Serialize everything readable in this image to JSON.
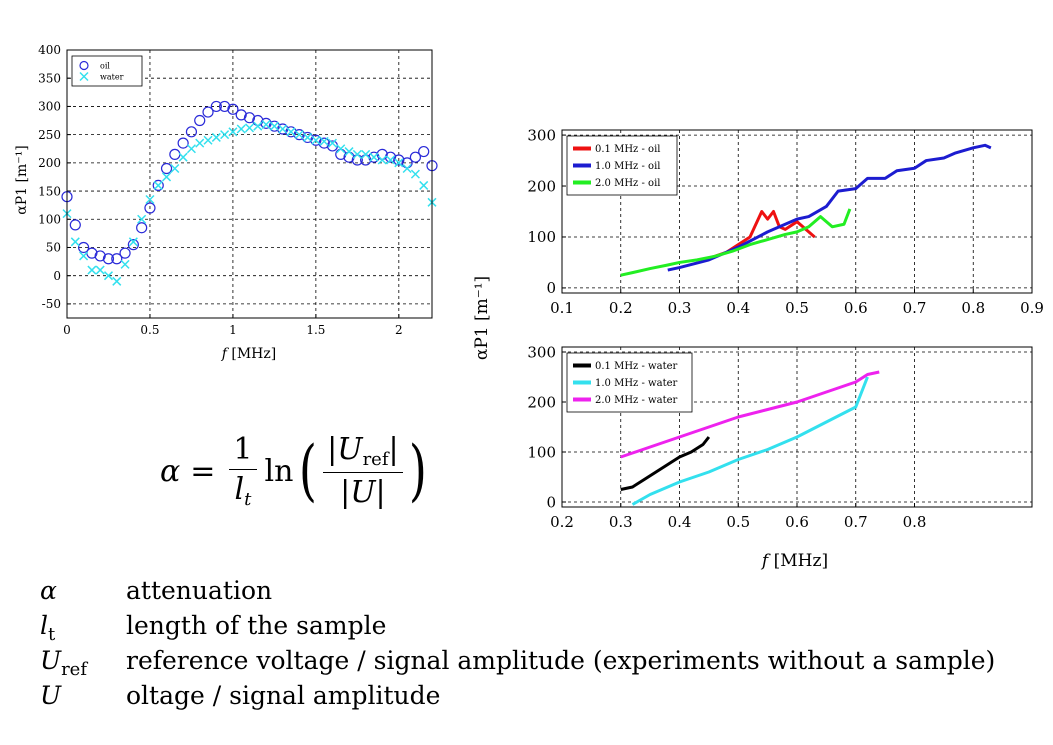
{
  "chart_data": [
    {
      "type": "scatter",
      "xlabel": "f [MHz]",
      "ylabel": "αP1 [m⁻¹]",
      "xlim": [
        0,
        2.2
      ],
      "ylim": [
        -75,
        400
      ],
      "xticks": [
        "0",
        "0.5",
        "1",
        "1.5",
        "2"
      ],
      "yticks": [
        "-50",
        "0",
        "50",
        "100",
        "150",
        "200",
        "250",
        "300",
        "350",
        "400"
      ],
      "grid": true,
      "legend_position": "top-left",
      "series": [
        {
          "name": "oil",
          "marker": "circle",
          "color": "#2a2ad8",
          "x": [
            0.0,
            0.05,
            0.1,
            0.15,
            0.2,
            0.25,
            0.3,
            0.35,
            0.4,
            0.45,
            0.5,
            0.55,
            0.6,
            0.65,
            0.7,
            0.75,
            0.8,
            0.85,
            0.9,
            0.95,
            1.0,
            1.05,
            1.1,
            1.15,
            1.2,
            1.25,
            1.3,
            1.35,
            1.4,
            1.45,
            1.5,
            1.55,
            1.6,
            1.65,
            1.7,
            1.75,
            1.8,
            1.85,
            1.9,
            1.95,
            2.0,
            2.05,
            2.1,
            2.15,
            2.2
          ],
          "y": [
            140,
            90,
            50,
            40,
            35,
            30,
            30,
            40,
            55,
            85,
            120,
            160,
            190,
            215,
            235,
            255,
            275,
            290,
            300,
            300,
            295,
            285,
            280,
            275,
            270,
            265,
            260,
            255,
            250,
            245,
            240,
            235,
            230,
            215,
            210,
            205,
            205,
            210,
            215,
            210,
            205,
            200,
            210,
            220,
            195
          ]
        },
        {
          "name": "water",
          "marker": "x",
          "color": "#33e0ee",
          "x": [
            0.0,
            0.05,
            0.1,
            0.15,
            0.2,
            0.25,
            0.3,
            0.35,
            0.4,
            0.45,
            0.5,
            0.55,
            0.6,
            0.65,
            0.7,
            0.75,
            0.8,
            0.85,
            0.9,
            0.95,
            1.0,
            1.05,
            1.1,
            1.15,
            1.2,
            1.25,
            1.3,
            1.35,
            1.4,
            1.45,
            1.5,
            1.55,
            1.6,
            1.65,
            1.7,
            1.75,
            1.8,
            1.85,
            1.9,
            1.95,
            2.0,
            2.05,
            2.1,
            2.15,
            2.2
          ],
          "y": [
            110,
            60,
            35,
            10,
            10,
            0,
            -10,
            20,
            60,
            100,
            135,
            160,
            175,
            190,
            210,
            225,
            235,
            240,
            245,
            250,
            255,
            260,
            262,
            265,
            268,
            265,
            260,
            255,
            250,
            245,
            240,
            238,
            235,
            225,
            220,
            215,
            215,
            210,
            205,
            205,
            200,
            190,
            180,
            160,
            130
          ]
        }
      ]
    },
    {
      "type": "line",
      "xlabel": "",
      "ylabel": "αP1 [m⁻¹]",
      "xlim": [
        0.1,
        0.9
      ],
      "ylim": [
        -10,
        310
      ],
      "xticks": [
        "0.1",
        "0.2",
        "0.3",
        "0.4",
        "0.5",
        "0.6",
        "0.7",
        "0.8",
        "0.9"
      ],
      "yticks": [
        "0",
        "100",
        "200",
        "300"
      ],
      "grid": true,
      "legend_position": "top-left",
      "series": [
        {
          "name": "0.1 MHz - oil",
          "color": "#ee1111",
          "x": [
            0.34,
            0.36,
            0.38,
            0.4,
            0.42,
            0.43,
            0.44,
            0.45,
            0.46,
            0.47,
            0.48,
            0.5,
            0.52,
            0.53
          ],
          "y": [
            55,
            62,
            70,
            85,
            100,
            125,
            150,
            135,
            150,
            120,
            115,
            130,
            110,
            100
          ]
        },
        {
          "name": "1.0 MHz - oil",
          "color": "#1c1cd0",
          "x": [
            0.28,
            0.3,
            0.35,
            0.4,
            0.45,
            0.5,
            0.52,
            0.55,
            0.57,
            0.6,
            0.62,
            0.65,
            0.67,
            0.7,
            0.72,
            0.75,
            0.77,
            0.8,
            0.82,
            0.83
          ],
          "y": [
            35,
            40,
            55,
            80,
            110,
            135,
            140,
            160,
            190,
            195,
            215,
            215,
            230,
            235,
            250,
            255,
            265,
            275,
            280,
            275
          ]
        },
        {
          "name": "2.0 MHz - oil",
          "color": "#22ee22",
          "x": [
            0.2,
            0.22,
            0.25,
            0.28,
            0.3,
            0.33,
            0.36,
            0.39,
            0.42,
            0.45,
            0.48,
            0.5,
            0.52,
            0.54,
            0.56,
            0.58,
            0.59
          ],
          "y": [
            25,
            30,
            38,
            45,
            50,
            55,
            62,
            72,
            85,
            95,
            105,
            110,
            120,
            140,
            120,
            125,
            155
          ]
        }
      ]
    },
    {
      "type": "line",
      "xlabel": "f [MHz]",
      "ylabel": "αP1 [m⁻¹]",
      "xlim": [
        0.2,
        1.0
      ],
      "ylim": [
        -10,
        310
      ],
      "xticks": [
        "0.2",
        "0.3",
        "0.4",
        "0.5",
        "0.6",
        "0.7",
        "0.8"
      ],
      "yticks": [
        "0",
        "100",
        "200",
        "300"
      ],
      "grid": true,
      "legend_position": "top-left",
      "series": [
        {
          "name": "0.1 MHz - water",
          "color": "#000000",
          "x": [
            0.3,
            0.32,
            0.34,
            0.36,
            0.38,
            0.4,
            0.42,
            0.44,
            0.45
          ],
          "y": [
            25,
            30,
            45,
            60,
            75,
            90,
            100,
            115,
            130
          ]
        },
        {
          "name": "1.0 MHz - water",
          "color": "#33e0ee",
          "x": [
            0.32,
            0.35,
            0.4,
            0.45,
            0.5,
            0.55,
            0.6,
            0.65,
            0.7,
            0.72
          ],
          "y": [
            -5,
            15,
            40,
            60,
            85,
            105,
            130,
            160,
            190,
            250
          ]
        },
        {
          "name": "2.0 MHz - water",
          "color": "#ee22ee",
          "x": [
            0.3,
            0.35,
            0.4,
            0.45,
            0.5,
            0.55,
            0.6,
            0.65,
            0.7,
            0.72,
            0.74
          ],
          "y": [
            90,
            110,
            130,
            150,
            170,
            185,
            200,
            220,
            240,
            255,
            260
          ]
        }
      ]
    }
  ],
  "shared_ylabel": "αP1 [m⁻¹]",
  "shared_xlabel": "f [MHz]",
  "formula": {
    "lhs": "α",
    "equals": "=",
    "frac_num": "1",
    "frac_den_var": "l",
    "frac_den_sub": "t",
    "ln": "ln",
    "num_text": "|U",
    "num_sub": "ref",
    "num_close": "|",
    "den_text": "|U|"
  },
  "definitions": [
    {
      "sym": "α",
      "sub": "",
      "text": "attenuation"
    },
    {
      "sym": "l",
      "sub": "t",
      "text": "length of the sample"
    },
    {
      "sym": "U",
      "sub": "ref",
      "text": "reference voltage / signal amplitude (experiments without a sample)"
    },
    {
      "sym": "U",
      "sub": "",
      "text": "oltage / signal amplitude"
    }
  ]
}
